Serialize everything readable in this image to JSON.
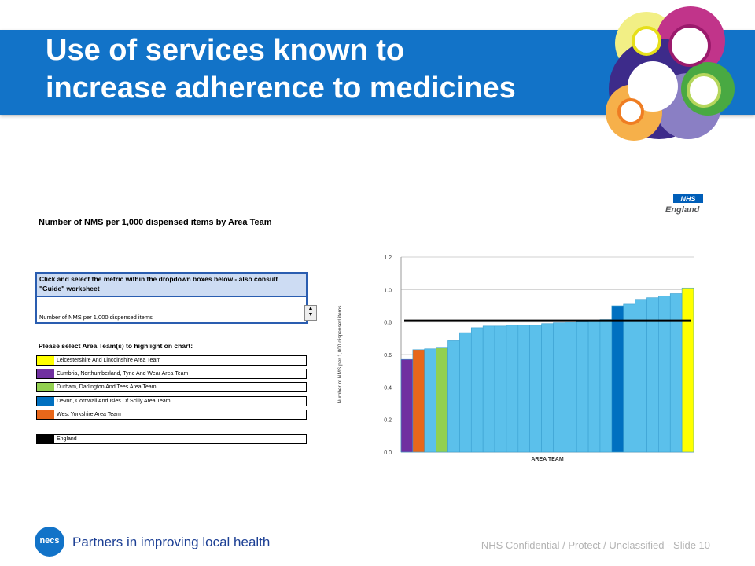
{
  "slide": {
    "title_line1": "Use of services known to",
    "title_line2": "increase adherence to medicines",
    "footer_tagline": "Partners in improving local health",
    "footer_confidential": "NHS Confidential / Protect / Unclassified - Slide 10",
    "footer_logo_text": "necs",
    "banner_color": "#1273c8"
  },
  "worksheet": {
    "heading": "Number of NMS per 1,000 dispensed items by Area Team",
    "metric_prompt": "Click and select the metric within the dropdown boxes below - also consult \"Guide\" worksheet",
    "metric_value": "Number of NMS per 1,000 dispensed items",
    "select_label": "Please select Area Team(s) to highlight on chart:",
    "legend": [
      {
        "name": "Leicestershire And Lincolnshire Area Team",
        "color": "#ffff00"
      },
      {
        "name": "Cumbria, Northumberland, Tyne And Wear Area Team",
        "color": "#7030a0"
      },
      {
        "name": "Durham, Darlington And Tees Area Team",
        "color": "#92d050"
      },
      {
        "name": "Devon, Cornwall And Isles Of Scilly Area Team",
        "color": "#0070c0"
      },
      {
        "name": "West Yorkshire Area Team",
        "color": "#e8671a"
      },
      {
        "name": "England",
        "color": "#000000"
      }
    ]
  },
  "logo": {
    "nhs_top": "NHS",
    "nhs_word": "England"
  },
  "chart_data": {
    "type": "bar",
    "xlabel": "AREA TEAM",
    "ylabel": "Number of NMS per 1,000 dispensed items",
    "ylim": [
      0,
      1.2
    ],
    "yticks": [
      "0.0",
      "0.2",
      "0.4",
      "0.6",
      "0.8",
      "1.0",
      "1.2"
    ],
    "grid": true,
    "reference_line": 0.81,
    "values": [
      0.57,
      0.63,
      0.635,
      0.64,
      0.685,
      0.735,
      0.765,
      0.775,
      0.775,
      0.78,
      0.78,
      0.78,
      0.79,
      0.795,
      0.8,
      0.805,
      0.81,
      0.815,
      0.9,
      0.91,
      0.94,
      0.95,
      0.96,
      0.975,
      1.01
    ],
    "colors": [
      "#7030a0",
      "#e8671a",
      "#5bc0eb",
      "#92d050",
      "#5bc0eb",
      "#5bc0eb",
      "#5bc0eb",
      "#5bc0eb",
      "#5bc0eb",
      "#5bc0eb",
      "#5bc0eb",
      "#5bc0eb",
      "#5bc0eb",
      "#5bc0eb",
      "#5bc0eb",
      "#5bc0eb",
      "#5bc0eb",
      "#5bc0eb",
      "#0070c0",
      "#5bc0eb",
      "#5bc0eb",
      "#5bc0eb",
      "#5bc0eb",
      "#5bc0eb",
      "#ffff00"
    ]
  }
}
